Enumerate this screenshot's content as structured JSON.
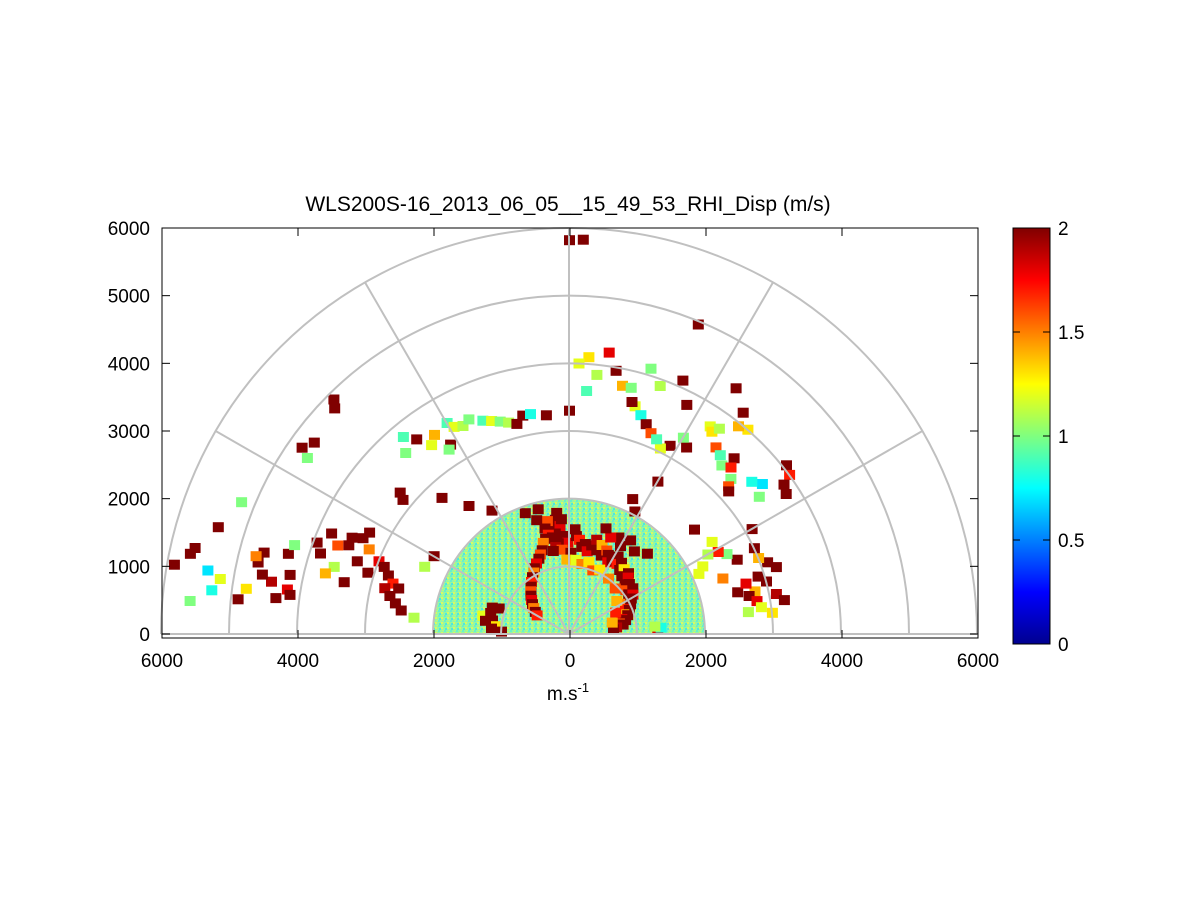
{
  "chart_data": {
    "type": "heatmap",
    "subtype": "polar-rhi",
    "title": "WLS200S-16_2013_06_05__15_49_53_RHI_Disp (m/s)",
    "xlabel_base": "m.s",
    "xlabel_sup": "-1",
    "xlim": [
      -6000,
      6000
    ],
    "ylim": [
      0,
      6000
    ],
    "x_ticks": [
      -6000,
      -4000,
      -2000,
      0,
      2000,
      4000,
      6000
    ],
    "x_tick_labels": [
      "6000",
      "4000",
      "2000",
      "0",
      "2000",
      "4000",
      "6000"
    ],
    "y_ticks": [
      0,
      1000,
      2000,
      3000,
      4000,
      5000,
      6000
    ],
    "y_tick_labels": [
      "0",
      "1000",
      "2000",
      "3000",
      "4000",
      "5000",
      "6000"
    ],
    "range_rings": [
      1000,
      2000,
      3000,
      4000,
      5000,
      6000
    ],
    "spokes_deg": [
      0,
      30,
      60,
      90,
      120,
      150,
      180
    ],
    "colorbar": {
      "min": 0,
      "max": 2,
      "colormap": "jet",
      "ticks": [
        0,
        0.5,
        1,
        1.5,
        2
      ],
      "tick_labels": [
        "0",
        "0.5",
        "1",
        "1.5",
        "2"
      ]
    },
    "dense_region": {
      "max_range": 2000,
      "approx_value": 0.95
    },
    "cells": [
      [
        90,
        5820,
        2.0
      ],
      [
        88,
        5830,
        2.0
      ],
      [
        67.5,
        4950,
        2.0
      ],
      [
        56,
        4380,
        2.0
      ],
      [
        82,
        4200,
        1.8
      ],
      [
        86,
        4100,
        1.3
      ],
      [
        88,
        4000,
        1.2
      ],
      [
        84,
        3850,
        1.1
      ],
      [
        80,
        3950,
        2.0
      ],
      [
        78,
        3750,
        1.4
      ],
      [
        76,
        3750,
        1.0
      ],
      [
        86,
        3600,
        0.9
      ],
      [
        90,
        3300,
        2.0
      ],
      [
        74,
        3500,
        1.2
      ],
      [
        72,
        3400,
        0.8
      ],
      [
        70,
        3300,
        2.0
      ],
      [
        75,
        3550,
        2.0
      ],
      [
        68,
        3200,
        1.6
      ],
      [
        73,
        4100,
        1.0
      ],
      [
        70,
        3900,
        1.1
      ],
      [
        66,
        4100,
        2.0
      ],
      [
        63,
        3800,
        2.0
      ],
      [
        56,
        3700,
        1.2
      ],
      [
        55,
        3650,
        1.3
      ],
      [
        52,
        3500,
        1.6
      ],
      [
        50,
        3450,
        0.9
      ],
      [
        48,
        3350,
        1.0
      ],
      [
        54,
        3750,
        1.1
      ],
      [
        47,
        3550,
        2.0
      ],
      [
        46,
        3420,
        1.7
      ],
      [
        44,
        3300,
        1.0
      ],
      [
        43,
        3200,
        1.6
      ],
      [
        42,
        3150,
        2.0
      ],
      [
        49,
        4000,
        1.3
      ],
      [
        52,
        4150,
        2.0
      ],
      [
        51,
        3950,
        1.4
      ],
      [
        38,
        4050,
        2.0
      ],
      [
        36,
        4000,
        1.7
      ],
      [
        35,
        3850,
        2.0
      ],
      [
        33,
        3800,
        2.0
      ],
      [
        58,
        3250,
        2.0
      ],
      [
        62,
        3150,
        2.0
      ],
      [
        64,
        3050,
        1.2
      ],
      [
        66,
        3150,
        0.9
      ],
      [
        60,
        3350,
        1.0
      ],
      [
        38,
        3600,
        0.7
      ],
      [
        40,
        3500,
        0.8
      ],
      [
        36,
        3450,
        1.0
      ],
      [
        60,
        2600,
        2.0
      ],
      [
        65,
        2200,
        2.0
      ],
      [
        62,
        2050,
        2.0
      ],
      [
        40,
        2400,
        2.0
      ],
      [
        30,
        3100,
        2.0
      ],
      [
        120,
        3600,
        0.9
      ],
      [
        119,
        3500,
        1.2
      ],
      [
        117,
        3450,
        1.1
      ],
      [
        115,
        3500,
        1.0
      ],
      [
        112,
        3400,
        0.9
      ],
      [
        110,
        3350,
        1.2
      ],
      [
        108,
        3300,
        1.0
      ],
      [
        106,
        3250,
        1.1
      ],
      [
        104,
        3200,
        2.0
      ],
      [
        102,
        3300,
        2.0
      ],
      [
        100,
        3300,
        0.8
      ],
      [
        96,
        3250,
        2.0
      ],
      [
        124,
        3550,
        1.4
      ],
      [
        126,
        3450,
        1.2
      ],
      [
        122,
        3300,
        2.0
      ],
      [
        128,
        3650,
        2.0
      ],
      [
        130,
        3800,
        0.9
      ],
      [
        132,
        3600,
        1.0
      ],
      [
        123,
        3250,
        1.0
      ],
      [
        145,
        4800,
        2.0
      ],
      [
        143,
        4700,
        2.0
      ],
      [
        146,
        4650,
        1.0
      ],
      [
        135,
        4900,
        2.0
      ],
      [
        136,
        4800,
        2.0
      ],
      [
        140,
        3250,
        2.0
      ],
      [
        141,
        3150,
        2.0
      ],
      [
        133,
        2750,
        2.0
      ],
      [
        128,
        2400,
        2.0
      ],
      [
        122,
        2150,
        2.0
      ],
      [
        110,
        1900,
        2.0
      ],
      [
        150,
        2300,
        2.0
      ],
      [
        155,
        2350,
        1.1
      ],
      [
        160,
        1100,
        2.0
      ],
      [
        161,
        1200,
        2.0
      ],
      [
        170,
        1150,
        2.0
      ],
      [
        168,
        1300,
        1.2
      ],
      [
        174,
        1100,
        1.3
      ],
      [
        176,
        1150,
        2.0
      ],
      [
        178,
        1000,
        2.0
      ],
      [
        165,
        1200,
        2.0
      ],
      [
        171,
        1250,
        2.0
      ],
      [
        3,
        1300,
        1.8
      ],
      [
        4,
        1350,
        0.8
      ],
      [
        5,
        1260,
        1.1
      ],
      [
        18,
        3200,
        2.0
      ],
      [
        20,
        3100,
        2.0
      ],
      [
        22,
        3000,
        1.4
      ],
      [
        25,
        3000,
        2.0
      ],
      [
        17,
        2900,
        2.0
      ],
      [
        15,
        3000,
        2.0
      ],
      [
        13,
        2800,
        1.4
      ],
      [
        12,
        2700,
        2.0
      ],
      [
        10,
        2800,
        1.8
      ],
      [
        8,
        2850,
        1.2
      ],
      [
        7,
        2650,
        1.1
      ],
      [
        14,
        2550,
        2.0
      ],
      [
        16,
        2700,
        1.8
      ],
      [
        20,
        2400,
        1.5
      ],
      [
        24,
        2700,
        2.0
      ],
      [
        27,
        2600,
        1.0
      ],
      [
        29,
        2500,
        1.7
      ],
      [
        11,
        3100,
        1.9
      ],
      [
        9,
        3200,
        2.0
      ],
      [
        6,
        3000,
        1.3
      ],
      [
        27,
        2200,
        1.2
      ],
      [
        30,
        2350,
        1.1
      ],
      [
        33,
        2500,
        1.2
      ],
      [
        25,
        2100,
        1.2
      ],
      [
        153,
        3300,
        2.0
      ],
      [
        155,
        3350,
        2.0
      ],
      [
        157,
        3200,
        1.5
      ],
      [
        159,
        3000,
        1.8
      ],
      [
        160,
        2900,
        2.0
      ],
      [
        162,
        2800,
        2.0
      ],
      [
        164,
        2700,
        1.7
      ],
      [
        165,
        2600,
        2.0
      ],
      [
        166,
        2800,
        1.9
      ],
      [
        168,
        2700,
        2.0
      ],
      [
        170,
        2600,
        2.0
      ],
      [
        172,
        2500,
        2.0
      ],
      [
        174,
        2300,
        1.1
      ],
      [
        163,
        3100,
        2.0
      ],
      [
        161,
        3300,
        2.0
      ],
      [
        158,
        3500,
        2.0
      ],
      [
        156,
        3500,
        2.0
      ],
      [
        167,
        3400,
        2.0
      ],
      [
        164,
        3600,
        1.1
      ],
      [
        166,
        3700,
        1.4
      ],
      [
        162,
        3850,
        2.0
      ],
      [
        160,
        3950,
        2.0
      ],
      [
        171,
        4200,
        1.8
      ],
      [
        173,
        4350,
        2.0
      ],
      [
        170,
        4450,
        1.9
      ],
      [
        168,
        4200,
        2.0
      ],
      [
        169,
        4600,
        2.0
      ],
      [
        167,
        4700,
        2.0
      ],
      [
        172,
        4150,
        2.0
      ],
      [
        164,
        4300,
        2.0
      ],
      [
        174,
        4900,
        2.0
      ],
      [
        172,
        4800,
        1.3
      ],
      [
        162,
        4250,
        1.0
      ],
      [
        159,
        3650,
        1.6
      ],
      [
        157,
        3800,
        2.0
      ],
      [
        173,
        5300,
        0.8
      ],
      [
        170,
        5400,
        0.7
      ],
      [
        171,
        5200,
        1.2
      ],
      [
        168,
        5700,
        2.0
      ],
      [
        167,
        5650,
        2.0
      ],
      [
        170,
        5900,
        2.0
      ],
      [
        175,
        5600,
        1.0
      ],
      [
        163,
        5400,
        2.0
      ],
      [
        158,
        5200,
        1.0
      ],
      [
        165,
        4650,
        2.0
      ],
      [
        166,
        4750,
        1.5
      ],
      [
        96,
        1800,
        2.0
      ],
      [
        97,
        1700,
        2.0
      ],
      [
        99,
        1650,
        2.0
      ],
      [
        101,
        1700,
        1.6
      ],
      [
        103,
        1600,
        2.0
      ],
      [
        95,
        1600,
        1.8
      ],
      [
        94,
        1700,
        2.0
      ],
      [
        98,
        1500,
        2.0
      ],
      [
        102,
        1500,
        1.7
      ],
      [
        100,
        1450,
        2.0
      ],
      [
        104,
        1450,
        2.0
      ],
      [
        106,
        1400,
        1.5
      ],
      [
        93,
        1450,
        2.0
      ],
      [
        91,
        1350,
        1.8
      ],
      [
        97,
        1350,
        2.0
      ],
      [
        99,
        1300,
        1.9
      ],
      [
        95,
        1250,
        1.6
      ],
      [
        101,
        1250,
        2.0
      ],
      [
        89,
        1200,
        2.0
      ],
      [
        86,
        1450,
        2.0
      ],
      [
        84,
        1400,
        1.7
      ],
      [
        82,
        1300,
        2.0
      ],
      [
        80,
        1350,
        2.0
      ],
      [
        78,
        1250,
        1.8
      ],
      [
        76,
        1350,
        2.0
      ],
      [
        74,
        1450,
        1.9
      ],
      [
        72,
        1300,
        2.0
      ],
      [
        70,
        1400,
        1.4
      ],
      [
        68,
        1250,
        2.0
      ],
      [
        66,
        1350,
        1.6
      ],
      [
        64,
        1300,
        2.0
      ],
      [
        62,
        1200,
        1.8
      ],
      [
        60,
        1250,
        2.0
      ],
      [
        58,
        1350,
        2.0
      ],
      [
        56,
        1250,
        1.7
      ],
      [
        54,
        1300,
        2.0
      ],
      [
        52,
        1200,
        2.0
      ],
      [
        50,
        1250,
        1.3
      ],
      [
        48,
        1150,
        2.0
      ],
      [
        46,
        1250,
        2.0
      ],
      [
        44,
        1200,
        1.8
      ],
      [
        42,
        1100,
        2.0
      ],
      [
        40,
        1150,
        2.0
      ],
      [
        38,
        1050,
        1.6
      ],
      [
        36,
        1150,
        2.0
      ],
      [
        34,
        1050,
        2.0
      ],
      [
        32,
        1100,
        1.8
      ],
      [
        30,
        1050,
        2.0
      ],
      [
        28,
        950,
        1.5
      ],
      [
        26,
        1000,
        2.0
      ],
      [
        24,
        900,
        1.7
      ],
      [
        22,
        950,
        2.0
      ],
      [
        20,
        850,
        1.4
      ],
      [
        18,
        900,
        2.0
      ],
      [
        16,
        800,
        1.8
      ],
      [
        14,
        850,
        2.0
      ],
      [
        12,
        750,
        1.6
      ],
      [
        10,
        800,
        2.0
      ],
      [
        8,
        700,
        1.9
      ],
      [
        6,
        650,
        2.0
      ],
      [
        60,
        1500,
        2.0
      ],
      [
        63,
        1600,
        2.0
      ],
      [
        57,
        1650,
        2.0
      ],
      [
        67,
        1550,
        1.8
      ],
      [
        71,
        1650,
        2.0
      ],
      [
        87,
        1550,
        2.0
      ],
      [
        108,
        1300,
        2.0
      ],
      [
        110,
        1250,
        1.6
      ],
      [
        112,
        1200,
        2.0
      ],
      [
        115,
        1150,
        1.8
      ],
      [
        118,
        1100,
        2.0
      ],
      [
        120,
        1050,
        1.5
      ],
      [
        123,
        1000,
        2.0
      ],
      [
        126,
        950,
        1.7
      ],
      [
        129,
        900,
        2.0
      ],
      [
        132,
        850,
        1.6
      ],
      [
        135,
        800,
        2.0
      ],
      [
        138,
        750,
        1.8
      ],
      [
        141,
        700,
        2.0
      ],
      [
        144,
        650,
        1.5
      ],
      [
        147,
        600,
        2.0
      ],
      [
        150,
        550,
        1.7
      ],
      [
        104,
        1900,
        2.0
      ],
      [
        106,
        1750,
        2.0
      ],
      [
        52,
        1550,
        2.0
      ],
      [
        46,
        1650,
        2.0
      ],
      [
        88,
        1050,
        1.2
      ],
      [
        92,
        1100,
        1.4
      ],
      [
        85,
        1100,
        1.2
      ],
      [
        80,
        1050,
        1.5
      ],
      [
        75,
        1100,
        1.3
      ],
      [
        70,
        1000,
        1.6
      ],
      [
        65,
        1050,
        1.3
      ],
      [
        55,
        1000,
        1.5
      ],
      [
        45,
        950,
        1.6
      ],
      [
        35,
        850,
        1.4
      ],
      [
        25,
        750,
        1.7
      ],
      [
        15,
        650,
        1.4
      ]
    ]
  }
}
